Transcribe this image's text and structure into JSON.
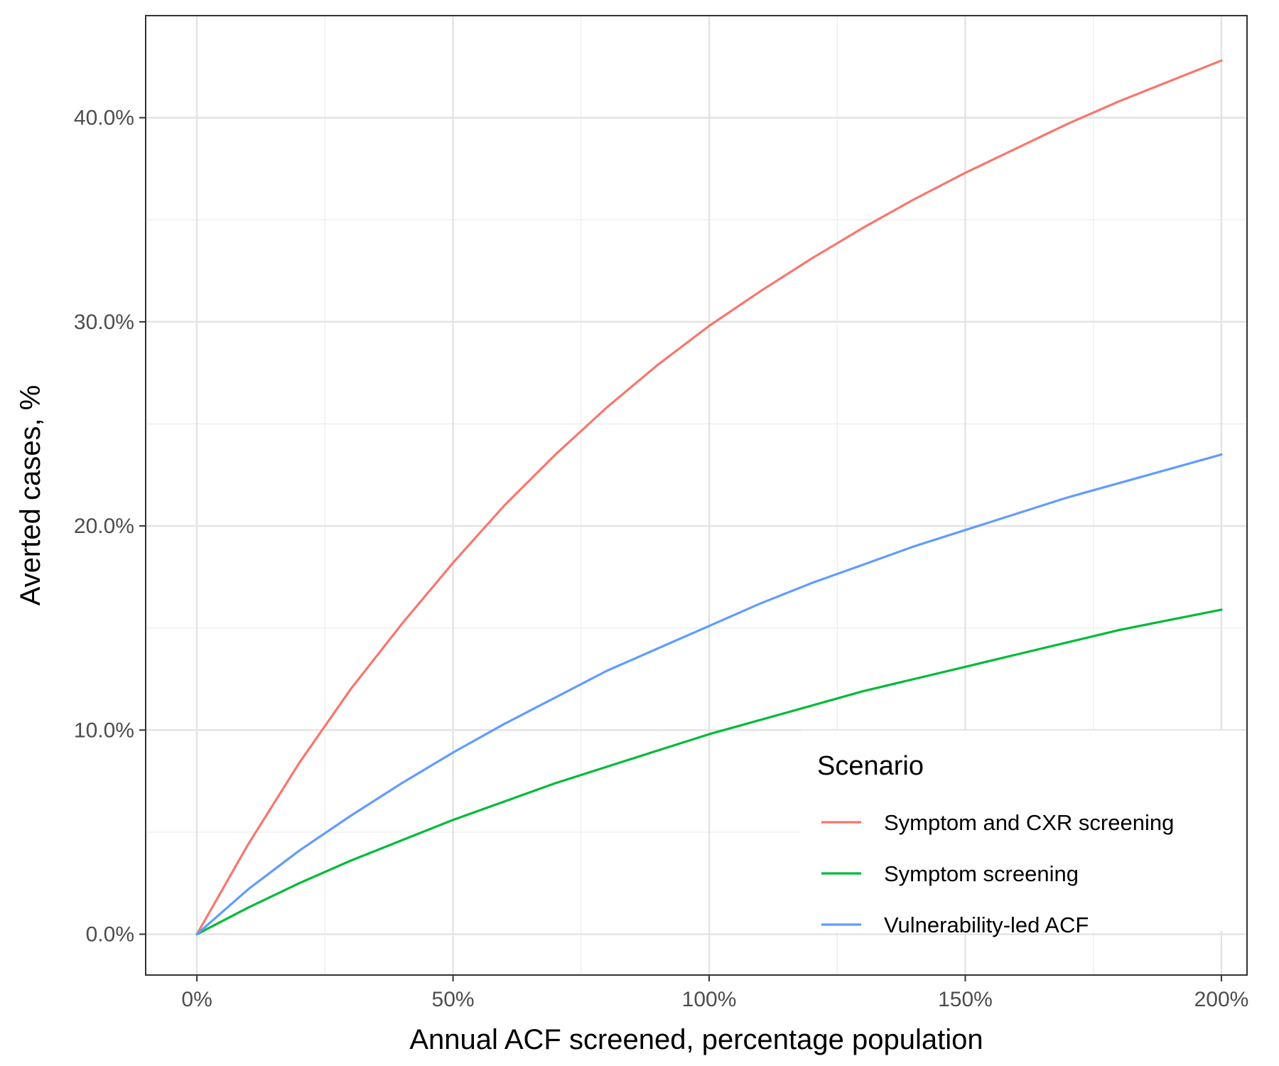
{
  "chart_data": {
    "type": "line",
    "xlabel": "Annual ACF screened, percentage population",
    "ylabel": "Averted cases, %",
    "xlim": [
      -10,
      205
    ],
    "ylim": [
      -2,
      45
    ],
    "x_ticks": [
      0,
      50,
      100,
      150,
      200
    ],
    "x_tick_labels": [
      "0%",
      "50%",
      "100%",
      "150%",
      "200%"
    ],
    "y_ticks": [
      0,
      10,
      20,
      30,
      40
    ],
    "y_tick_labels": [
      "0.0%",
      "10.0%",
      "20.0%",
      "30.0%",
      "40.0%"
    ],
    "grid": true,
    "legend": {
      "title": "Scenario",
      "position": "bottom-right"
    },
    "x": [
      0,
      10,
      20,
      30,
      40,
      50,
      60,
      70,
      80,
      90,
      100,
      110,
      120,
      130,
      140,
      150,
      160,
      170,
      180,
      190,
      200
    ],
    "series": [
      {
        "name": "Symptom and CXR screening",
        "color": "#F8766D",
        "values": [
          0,
          4.4,
          8.4,
          12.0,
          15.2,
          18.2,
          21.0,
          23.5,
          25.8,
          27.9,
          29.8,
          31.5,
          33.1,
          34.6,
          36.0,
          37.3,
          38.5,
          39.7,
          40.8,
          41.8,
          42.8
        ]
      },
      {
        "name": "Symptom screening",
        "color": "#00BA38",
        "values": [
          0,
          1.3,
          2.5,
          3.6,
          4.6,
          5.6,
          6.5,
          7.4,
          8.2,
          9.0,
          9.8,
          10.5,
          11.2,
          11.9,
          12.5,
          13.1,
          13.7,
          14.3,
          14.9,
          15.4,
          15.9
        ]
      },
      {
        "name": "Vulnerability-led ACF",
        "color": "#619CFF",
        "values": [
          0,
          2.2,
          4.1,
          5.8,
          7.4,
          8.9,
          10.3,
          11.6,
          12.9,
          14.0,
          15.1,
          16.2,
          17.2,
          18.1,
          19.0,
          19.8,
          20.6,
          21.4,
          22.1,
          22.8,
          23.5
        ]
      }
    ]
  }
}
